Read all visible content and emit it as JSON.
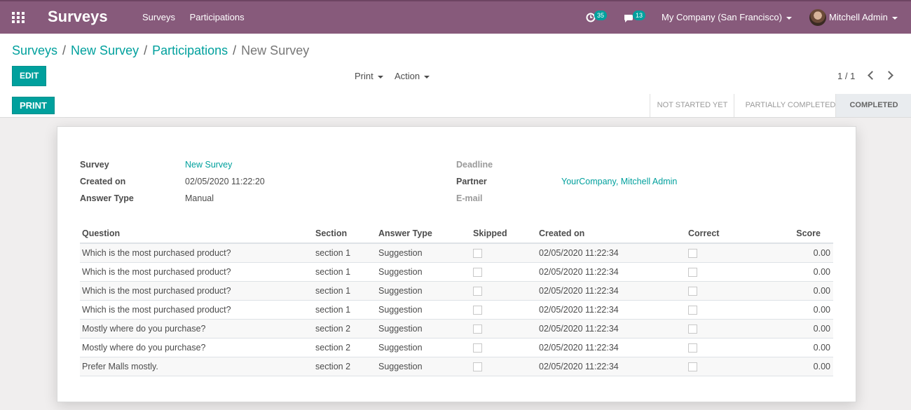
{
  "navbar": {
    "app_title": "Surveys",
    "menu": [
      "Surveys",
      "Participations"
    ],
    "activity_count": "35",
    "message_count": "13",
    "company": "My Company (San Francisco)",
    "user": "Mitchell Admin"
  },
  "breadcrumb": [
    "Surveys",
    "New Survey",
    "Participations",
    "New Survey"
  ],
  "toolbar": {
    "edit_label": "EDIT",
    "print_label": "Print",
    "action_label": "Action",
    "pager": "1 / 1"
  },
  "statusbar": {
    "print_button": "PRINT",
    "stages": [
      "NOT STARTED YET",
      "PARTIALLY COMPLETED",
      "COMPLETED"
    ],
    "active_stage": "COMPLETED"
  },
  "form": {
    "survey_label": "Survey",
    "survey_value": "New Survey",
    "created_label": "Created on",
    "created_value": "02/05/2020 11:22:20",
    "answer_type_label": "Answer Type",
    "answer_type_value": "Manual",
    "deadline_label": "Deadline",
    "partner_label": "Partner",
    "partner_value": "YourCompany, Mitchell Admin",
    "email_label": "E-mail"
  },
  "table": {
    "columns": [
      "Question",
      "Section",
      "Answer Type",
      "Skipped",
      "Created on",
      "Correct",
      "Score"
    ],
    "rows": [
      [
        "Which is the most purchased product?",
        "section 1",
        "Suggestion",
        "02/05/2020 11:22:34",
        "0.00"
      ],
      [
        "Which is the most purchased product?",
        "section 1",
        "Suggestion",
        "02/05/2020 11:22:34",
        "0.00"
      ],
      [
        "Which is the most purchased product?",
        "section 1",
        "Suggestion",
        "02/05/2020 11:22:34",
        "0.00"
      ],
      [
        "Which is the most purchased product?",
        "section 1",
        "Suggestion",
        "02/05/2020 11:22:34",
        "0.00"
      ],
      [
        "Mostly where do you purchase?",
        "section 2",
        "Suggestion",
        "02/05/2020 11:22:34",
        "0.00"
      ],
      [
        "Mostly where do you purchase?",
        "section 2",
        "Suggestion",
        "02/05/2020 11:22:34",
        "0.00"
      ],
      [
        "Prefer Malls mostly.",
        "section 2",
        "Suggestion",
        "02/05/2020 11:22:34",
        "0.00"
      ]
    ]
  },
  "colors": {
    "navbar": "#875a7b",
    "primary": "#00a09d"
  }
}
